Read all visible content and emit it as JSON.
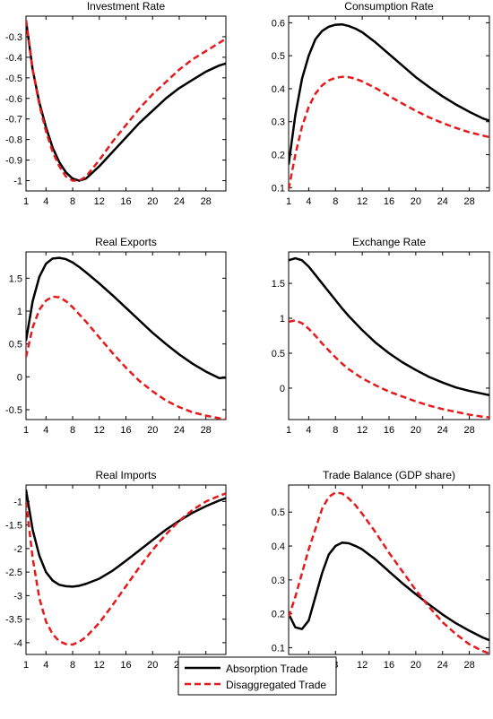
{
  "colors": {
    "absorption": "#000000",
    "disaggregated": "#e41a1c"
  },
  "legend": {
    "placement": "bottom-center",
    "items": [
      {
        "label": "Absorption Trade",
        "color": "#000000",
        "style": "solid"
      },
      {
        "label": "Disaggregated Trade",
        "color": "#e41a1c",
        "style": "dashed"
      }
    ]
  },
  "chart_data": [
    {
      "type": "line",
      "title": "Investment Rate",
      "xlim": [
        1,
        31
      ],
      "xticks": [
        1,
        4,
        8,
        12,
        16,
        20,
        24,
        28
      ],
      "ylim": [
        -1.05,
        -0.2
      ],
      "yticks": [
        -1,
        -0.9,
        -0.8,
        -0.7,
        -0.6,
        -0.5,
        -0.4,
        -0.3
      ],
      "series": [
        {
          "name": "Absorption Trade",
          "x": [
            1,
            2,
            3,
            4,
            5,
            6,
            7,
            8,
            9,
            10,
            11,
            12,
            14,
            16,
            18,
            20,
            22,
            24,
            26,
            28,
            30,
            31
          ],
          "values": [
            -0.22,
            -0.46,
            -0.62,
            -0.74,
            -0.84,
            -0.91,
            -0.96,
            -0.99,
            -1.0,
            -0.99,
            -0.96,
            -0.93,
            -0.86,
            -0.79,
            -0.72,
            -0.66,
            -0.6,
            -0.55,
            -0.51,
            -0.47,
            -0.44,
            -0.43
          ]
        },
        {
          "name": "Disaggregated Trade",
          "x": [
            1,
            2,
            3,
            4,
            5,
            6,
            7,
            8,
            9,
            10,
            11,
            12,
            14,
            16,
            18,
            20,
            22,
            24,
            26,
            28,
            30,
            31
          ],
          "values": [
            -0.22,
            -0.46,
            -0.63,
            -0.76,
            -0.86,
            -0.93,
            -0.98,
            -1.0,
            -1.0,
            -0.98,
            -0.94,
            -0.9,
            -0.81,
            -0.73,
            -0.65,
            -0.58,
            -0.52,
            -0.46,
            -0.41,
            -0.37,
            -0.33,
            -0.31
          ]
        }
      ]
    },
    {
      "type": "line",
      "title": "Consumption Rate",
      "xlim": [
        1,
        31
      ],
      "xticks": [
        1,
        4,
        8,
        12,
        16,
        20,
        24,
        28
      ],
      "ylim": [
        0.09,
        0.62
      ],
      "yticks": [
        0.1,
        0.2,
        0.3,
        0.4,
        0.5,
        0.6
      ],
      "series": [
        {
          "name": "Absorption Trade",
          "x": [
            1,
            2,
            3,
            4,
            5,
            6,
            7,
            8,
            9,
            10,
            11,
            12,
            14,
            16,
            18,
            20,
            22,
            24,
            26,
            28,
            30,
            31
          ],
          "values": [
            0.17,
            0.32,
            0.43,
            0.5,
            0.55,
            0.575,
            0.588,
            0.594,
            0.595,
            0.59,
            0.582,
            0.571,
            0.54,
            0.505,
            0.47,
            0.435,
            0.405,
            0.377,
            0.352,
            0.33,
            0.31,
            0.303
          ]
        },
        {
          "name": "Disaggregated Trade",
          "x": [
            1,
            2,
            3,
            4,
            5,
            6,
            7,
            8,
            9,
            10,
            11,
            12,
            14,
            16,
            18,
            20,
            22,
            24,
            26,
            28,
            30,
            31
          ],
          "values": [
            0.095,
            0.2,
            0.285,
            0.345,
            0.385,
            0.41,
            0.425,
            0.433,
            0.436,
            0.435,
            0.43,
            0.422,
            0.402,
            0.378,
            0.355,
            0.333,
            0.313,
            0.296,
            0.281,
            0.268,
            0.258,
            0.253
          ]
        }
      ]
    },
    {
      "type": "line",
      "title": "Real Exports",
      "xlim": [
        1,
        31
      ],
      "xticks": [
        1,
        4,
        8,
        12,
        16,
        20,
        24,
        28
      ],
      "ylim": [
        -0.65,
        1.9
      ],
      "yticks": [
        -0.5,
        0,
        0.5,
        1,
        1.5
      ],
      "series": [
        {
          "name": "Absorption Trade",
          "x": [
            1,
            2,
            3,
            4,
            5,
            6,
            7,
            8,
            9,
            10,
            12,
            14,
            16,
            18,
            20,
            22,
            24,
            26,
            28,
            30,
            31
          ],
          "values": [
            0.55,
            1.15,
            1.52,
            1.72,
            1.8,
            1.81,
            1.79,
            1.74,
            1.67,
            1.59,
            1.42,
            1.24,
            1.05,
            0.86,
            0.67,
            0.5,
            0.34,
            0.2,
            0.08,
            -0.02,
            -0.01
          ]
        },
        {
          "name": "Disaggregated Trade",
          "x": [
            1,
            2,
            3,
            4,
            5,
            6,
            7,
            8,
            9,
            10,
            12,
            14,
            16,
            18,
            20,
            22,
            24,
            26,
            28,
            30,
            31
          ],
          "values": [
            0.3,
            0.75,
            1.02,
            1.16,
            1.22,
            1.21,
            1.15,
            1.06,
            0.95,
            0.84,
            0.6,
            0.36,
            0.14,
            -0.06,
            -0.22,
            -0.36,
            -0.46,
            -0.54,
            -0.59,
            -0.63,
            -0.65
          ]
        }
      ]
    },
    {
      "type": "line",
      "title": "Exchange Rate",
      "xlim": [
        1,
        31
      ],
      "xticks": [
        1,
        4,
        8,
        12,
        16,
        20,
        24,
        28
      ],
      "ylim": [
        -0.45,
        1.95
      ],
      "yticks": [
        0,
        0.5,
        1,
        1.5
      ],
      "series": [
        {
          "name": "Absorption Trade",
          "x": [
            1,
            2,
            3,
            4,
            5,
            6,
            7,
            8,
            9,
            10,
            12,
            14,
            16,
            18,
            20,
            22,
            24,
            26,
            28,
            30,
            31
          ],
          "values": [
            1.83,
            1.86,
            1.83,
            1.74,
            1.62,
            1.5,
            1.38,
            1.26,
            1.14,
            1.03,
            0.83,
            0.65,
            0.5,
            0.37,
            0.26,
            0.16,
            0.08,
            0.01,
            -0.04,
            -0.08,
            -0.1
          ]
        },
        {
          "name": "Disaggregated Trade",
          "x": [
            1,
            2,
            3,
            4,
            5,
            6,
            7,
            8,
            9,
            10,
            12,
            14,
            16,
            18,
            20,
            22,
            24,
            26,
            28,
            30,
            31
          ],
          "values": [
            0.95,
            0.97,
            0.93,
            0.85,
            0.75,
            0.64,
            0.54,
            0.44,
            0.35,
            0.27,
            0.14,
            0.04,
            -0.05,
            -0.12,
            -0.19,
            -0.25,
            -0.3,
            -0.34,
            -0.38,
            -0.41,
            -0.42
          ]
        }
      ]
    },
    {
      "type": "line",
      "title": "Real Imports",
      "xlim": [
        1,
        31
      ],
      "xticks": [
        1,
        4,
        8,
        12,
        16,
        20,
        24,
        28
      ],
      "ylim": [
        -4.25,
        -0.65
      ],
      "yticks": [
        -4,
        -3.5,
        -3,
        -2.5,
        -2,
        -1.5,
        -1
      ],
      "series": [
        {
          "name": "Absorption Trade",
          "x": [
            1,
            2,
            3,
            4,
            5,
            6,
            7,
            8,
            9,
            10,
            12,
            14,
            16,
            18,
            20,
            22,
            24,
            26,
            28,
            30,
            31
          ],
          "values": [
            -0.75,
            -1.6,
            -2.15,
            -2.5,
            -2.68,
            -2.77,
            -2.8,
            -2.81,
            -2.79,
            -2.75,
            -2.64,
            -2.47,
            -2.26,
            -2.04,
            -1.82,
            -1.6,
            -1.41,
            -1.24,
            -1.1,
            -0.98,
            -0.93
          ]
        },
        {
          "name": "Disaggregated Trade",
          "x": [
            1,
            2,
            3,
            4,
            5,
            6,
            7,
            8,
            9,
            10,
            12,
            14,
            16,
            18,
            20,
            22,
            24,
            26,
            28,
            30,
            31
          ],
          "values": [
            -1.0,
            -2.2,
            -3.05,
            -3.55,
            -3.82,
            -3.97,
            -4.03,
            -4.04,
            -3.98,
            -3.88,
            -3.58,
            -3.2,
            -2.8,
            -2.4,
            -2.03,
            -1.7,
            -1.41,
            -1.18,
            -1.0,
            -0.88,
            -0.83
          ]
        }
      ]
    },
    {
      "type": "line",
      "title": "Trade Balance (GDP share)",
      "xlim": [
        1,
        31
      ],
      "xticks": [
        1,
        4,
        8,
        12,
        16,
        20,
        24,
        28
      ],
      "ylim": [
        0.08,
        0.58
      ],
      "yticks": [
        0.1,
        0.2,
        0.3,
        0.4,
        0.5
      ],
      "series": [
        {
          "name": "Absorption Trade",
          "x": [
            1,
            2,
            3,
            4,
            5,
            6,
            7,
            8,
            9,
            10,
            11,
            12,
            14,
            16,
            18,
            20,
            22,
            24,
            26,
            28,
            30,
            31
          ],
          "values": [
            0.2,
            0.16,
            0.155,
            0.18,
            0.25,
            0.32,
            0.375,
            0.4,
            0.41,
            0.408,
            0.4,
            0.39,
            0.36,
            0.325,
            0.29,
            0.258,
            0.227,
            0.198,
            0.172,
            0.15,
            0.13,
            0.122
          ]
        },
        {
          "name": "Disaggregated Trade",
          "x": [
            1,
            2,
            3,
            4,
            5,
            6,
            7,
            8,
            9,
            10,
            11,
            12,
            14,
            16,
            18,
            20,
            22,
            24,
            26,
            28,
            30,
            31
          ],
          "values": [
            0.19,
            0.25,
            0.32,
            0.39,
            0.45,
            0.51,
            0.545,
            0.558,
            0.555,
            0.54,
            0.52,
            0.495,
            0.44,
            0.38,
            0.325,
            0.27,
            0.22,
            0.175,
            0.14,
            0.11,
            0.09,
            0.083
          ]
        }
      ]
    }
  ]
}
